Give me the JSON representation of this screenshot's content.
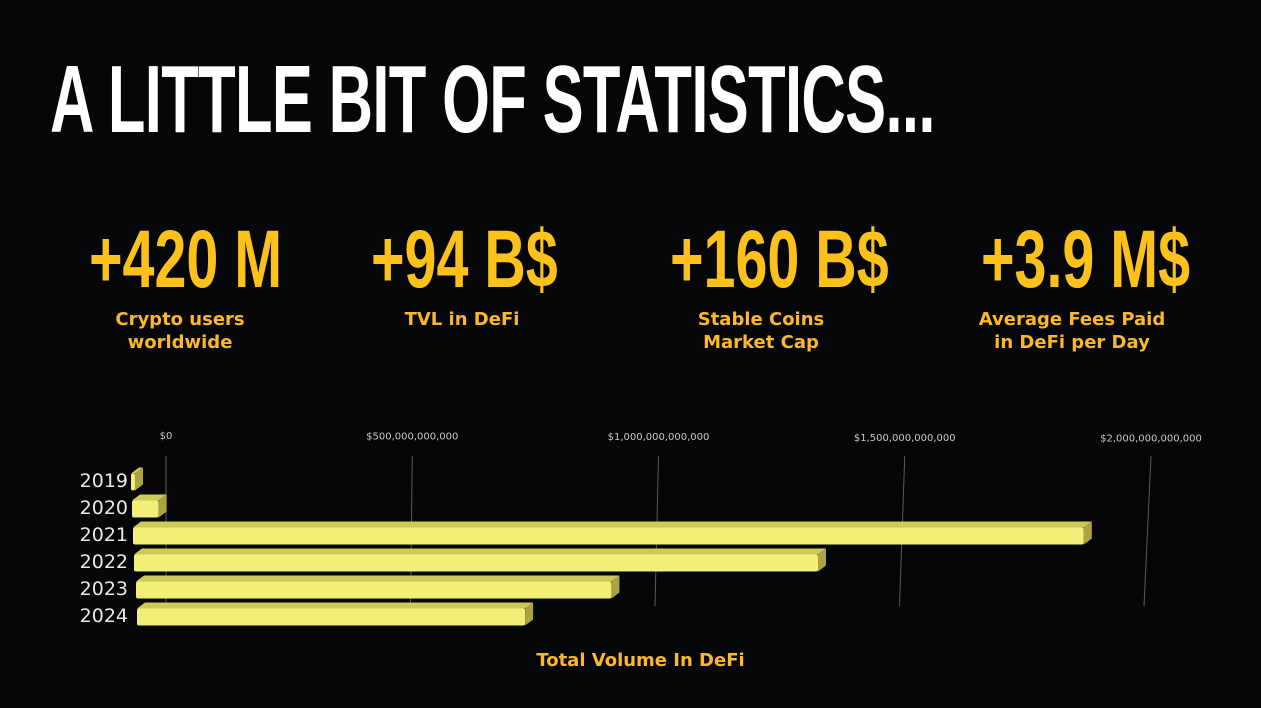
{
  "title": "A LITTLE BIT OF STATISTICS...",
  "stats": [
    {
      "value": "+420 M",
      "label": "Crypto users\nworldwide"
    },
    {
      "value": "+94 B$",
      "label": "TVL in DeFi"
    },
    {
      "value": "+160 B$",
      "label": "Stable Coins\nMarket Cap"
    },
    {
      "value": "+3.9 M$",
      "label": "Average Fees Paid\nin DeFi per Day"
    }
  ],
  "colors": {
    "accent": "#fcc21b",
    "bar": "#f2ee78",
    "background": "#040608"
  },
  "chart_data": {
    "type": "bar",
    "orientation": "horizontal",
    "style": "3d",
    "categories": [
      "2019",
      "2020",
      "2021",
      "2022",
      "2023",
      "2024"
    ],
    "values": [
      3000000000,
      55000000000,
      1960000000000,
      1410000000000,
      980000000000,
      800000000000
    ],
    "xlim": [
      0,
      2000000000000
    ],
    "ticks": [
      "$0",
      "$500,000,000,000",
      "$1,000,000,000,000",
      "$1,500,000,000,000",
      "$2,000,000,000,000"
    ],
    "tick_values": [
      0,
      500000000000,
      1000000000000,
      1500000000000,
      2000000000000
    ],
    "xlabel": "Total Volume In DeFi",
    "grid": true
  }
}
